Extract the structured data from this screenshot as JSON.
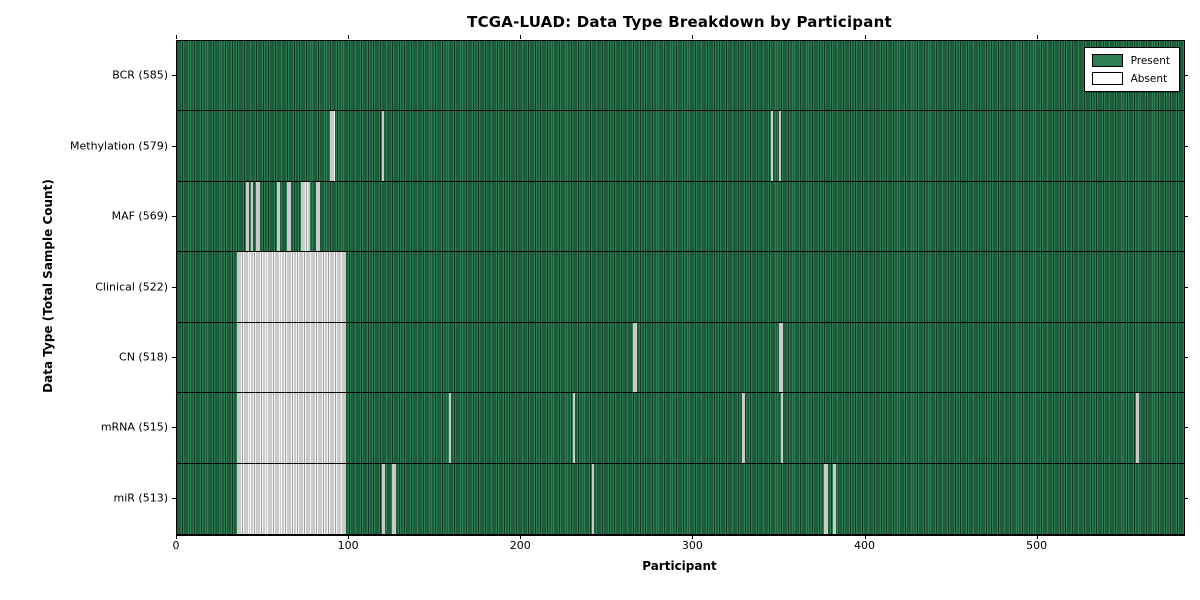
{
  "title": "TCGA-LUAD: Data Type Breakdown by Participant",
  "xlabel": "Participant",
  "ylabel": "Data Type (Total Sample Count)",
  "legend": {
    "present": "Present",
    "absent": "Absent"
  },
  "colors": {
    "present_fill": "#2e7e53",
    "present_edge": "#0f3a26",
    "absent_fill": "#f4f4f4",
    "absent_edge": "#9f9f9f",
    "axis": "#000000",
    "background": "#ffffff"
  },
  "chart_data": {
    "type": "heatmap",
    "title": "TCGA-LUAD: Data Type Breakdown by Participant",
    "xlabel": "Participant",
    "ylabel": "Data Type (Total Sample Count)",
    "xlim": [
      0,
      585
    ],
    "x_ticks": [
      0,
      100,
      200,
      300,
      400,
      500
    ],
    "grid": false,
    "legend_entries": [
      "Present",
      "Absent"
    ],
    "legend_position": "upper right",
    "cell_values": "present=1 (green), absent=0 (white); 585 participant columns per row",
    "rows": [
      {
        "name": "BCR",
        "label": "BCR (585)",
        "total": 585,
        "absent_runs": []
      },
      {
        "name": "Methylation",
        "label": "Methylation (579)",
        "total": 579,
        "absent_runs": [
          [
            89,
            92
          ],
          [
            119,
            120
          ],
          [
            345,
            346
          ],
          [
            350,
            351
          ]
        ]
      },
      {
        "name": "MAF",
        "label": "MAF (569)",
        "total": 569,
        "absent_runs": [
          [
            40,
            42
          ],
          [
            43,
            44
          ],
          [
            46,
            48
          ],
          [
            58,
            60
          ],
          [
            64,
            66
          ],
          [
            72,
            77
          ],
          [
            81,
            83
          ]
        ]
      },
      {
        "name": "Clinical",
        "label": "Clinical (522)",
        "total": 522,
        "absent_runs": [
          [
            35,
            98
          ]
        ]
      },
      {
        "name": "CN",
        "label": "CN (518)",
        "total": 518,
        "absent_runs": [
          [
            35,
            98
          ],
          [
            265,
            267
          ],
          [
            350,
            352
          ]
        ]
      },
      {
        "name": "mRNA",
        "label": "mRNA (515)",
        "total": 515,
        "absent_runs": [
          [
            35,
            98
          ],
          [
            158,
            159
          ],
          [
            230,
            231
          ],
          [
            328,
            330
          ],
          [
            351,
            352
          ],
          [
            557,
            559
          ]
        ]
      },
      {
        "name": "miR",
        "label": "miR (513)",
        "total": 513,
        "absent_runs": [
          [
            35,
            98
          ],
          [
            119,
            121
          ],
          [
            125,
            127
          ],
          [
            241,
            242
          ],
          [
            376,
            378
          ],
          [
            381,
            383
          ]
        ]
      }
    ]
  }
}
